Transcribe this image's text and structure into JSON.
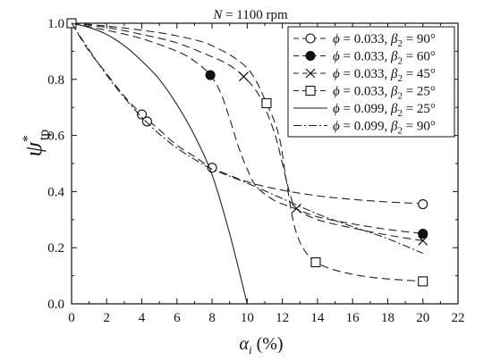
{
  "chart_data": {
    "type": "line",
    "title": "N = 1100 rpm",
    "title_parts": [
      "N",
      " = 1100 rpm"
    ],
    "xlabel": "αi (%)",
    "xlabel_parts": [
      "α",
      "i",
      " (%)"
    ],
    "ylabel": "ψ*tp",
    "ylabel_parts": [
      "ψ",
      "*",
      "tp"
    ],
    "xlim": [
      0,
      22
    ],
    "ylim": [
      0,
      1.0
    ],
    "xticks": [
      0,
      2,
      4,
      6,
      8,
      10,
      12,
      14,
      16,
      18,
      20,
      22
    ],
    "yticks": [
      0.0,
      0.2,
      0.4,
      0.6,
      0.8,
      1.0
    ],
    "xtick_labels": [
      "0",
      "2",
      "4",
      "6",
      "8",
      "10",
      "12",
      "14",
      "16",
      "18",
      "20",
      "22"
    ],
    "ytick_labels": [
      "0.0",
      "0.2",
      "0.4",
      "0.6",
      "0.8",
      "1.0"
    ],
    "grid": false,
    "legend_position": "top-right",
    "series": [
      {
        "name": "ϕ = 0.033, β2 = 90°",
        "label_parts": [
          "ϕ",
          " = 0.033, ",
          "β",
          "2",
          " = 90°"
        ],
        "marker": "open-circle",
        "dash": "9,5",
        "points": [
          [
            0,
            1.0
          ],
          [
            4,
            0.675
          ],
          [
            4.3,
            0.65
          ],
          [
            8,
            0.485
          ],
          [
            20,
            0.355
          ]
        ],
        "curve": [
          [
            0,
            1.0
          ],
          [
            1,
            0.9
          ],
          [
            2,
            0.82
          ],
          [
            3,
            0.74
          ],
          [
            4,
            0.675
          ],
          [
            5,
            0.62
          ],
          [
            6,
            0.565
          ],
          [
            7,
            0.525
          ],
          [
            8,
            0.485
          ],
          [
            10,
            0.435
          ],
          [
            12,
            0.405
          ],
          [
            14,
            0.385
          ],
          [
            16,
            0.372
          ],
          [
            18,
            0.363
          ],
          [
            20,
            0.357
          ]
        ]
      },
      {
        "name": "ϕ = 0.033, β2 = 60°",
        "label_parts": [
          "ϕ",
          " = 0.033, ",
          "β",
          "2",
          " = 60°"
        ],
        "marker": "filled-circle",
        "dash": "9,5",
        "points": [
          [
            0,
            1.0
          ],
          [
            7.9,
            0.815
          ],
          [
            20,
            0.25
          ]
        ],
        "curve": [
          [
            0,
            1.0
          ],
          [
            2,
            0.975
          ],
          [
            4,
            0.945
          ],
          [
            6,
            0.9
          ],
          [
            7,
            0.865
          ],
          [
            7.9,
            0.815
          ],
          [
            8.5,
            0.75
          ],
          [
            9,
            0.66
          ],
          [
            9.5,
            0.56
          ],
          [
            10,
            0.48
          ],
          [
            10.5,
            0.42
          ],
          [
            11.5,
            0.37
          ],
          [
            12.7,
            0.34
          ],
          [
            14,
            0.31
          ],
          [
            16,
            0.285
          ],
          [
            18,
            0.265
          ],
          [
            20,
            0.25
          ]
        ]
      },
      {
        "name": "ϕ = 0.033, β2 = 45°",
        "label_parts": [
          "ϕ",
          " = 0.033, ",
          "β",
          "2",
          " = 45°"
        ],
        "marker": "cross",
        "dash": "9,5",
        "points": [
          [
            0,
            1.0
          ],
          [
            9.8,
            0.81
          ],
          [
            12.8,
            0.34
          ],
          [
            20,
            0.225
          ]
        ],
        "curve": [
          [
            0,
            1.0
          ],
          [
            2,
            0.985
          ],
          [
            4,
            0.96
          ],
          [
            6,
            0.93
          ],
          [
            8,
            0.88
          ],
          [
            9,
            0.85
          ],
          [
            9.8,
            0.81
          ],
          [
            10.5,
            0.76
          ],
          [
            11,
            0.7
          ],
          [
            11.6,
            0.6
          ],
          [
            12,
            0.5
          ],
          [
            12.4,
            0.4
          ],
          [
            12.8,
            0.34
          ],
          [
            14,
            0.3
          ],
          [
            16,
            0.27
          ],
          [
            18,
            0.245
          ],
          [
            20,
            0.225
          ]
        ]
      },
      {
        "name": "ϕ = 0.033, β2 = 25°",
        "label_parts": [
          "ϕ",
          " = 0.033, ",
          "β",
          "2",
          " = 25°"
        ],
        "marker": "open-square",
        "dash": "9,5",
        "points": [
          [
            0,
            1.0
          ],
          [
            11.1,
            0.715
          ],
          [
            13.9,
            0.148
          ],
          [
            20,
            0.08
          ]
        ],
        "curve": [
          [
            0,
            1.0
          ],
          [
            2,
            0.99
          ],
          [
            4,
            0.975
          ],
          [
            6,
            0.955
          ],
          [
            8,
            0.92
          ],
          [
            10,
            0.84
          ],
          [
            11.1,
            0.715
          ],
          [
            11.8,
            0.6
          ],
          [
            12.2,
            0.45
          ],
          [
            12.6,
            0.3
          ],
          [
            13,
            0.22
          ],
          [
            13.5,
            0.17
          ],
          [
            13.9,
            0.148
          ],
          [
            15,
            0.12
          ],
          [
            17,
            0.095
          ],
          [
            20,
            0.08
          ]
        ]
      },
      {
        "name": "ϕ = 0.099, β2 = 25°",
        "label_parts": [
          "ϕ",
          " = 0.099, ",
          "β",
          "2",
          " = 25°"
        ],
        "marker": "none",
        "dash": "",
        "points": [],
        "curve": [
          [
            0,
            1.0
          ],
          [
            1,
            0.985
          ],
          [
            2,
            0.96
          ],
          [
            3,
            0.92
          ],
          [
            4,
            0.865
          ],
          [
            5,
            0.8
          ],
          [
            6,
            0.71
          ],
          [
            7,
            0.6
          ],
          [
            8,
            0.46
          ],
          [
            9,
            0.25
          ],
          [
            10,
            0.0
          ]
        ]
      },
      {
        "name": "ϕ = 0.099, β2 = 90°",
        "label_parts": [
          "ϕ",
          " = 0.099, ",
          "β",
          "2",
          " = 90°"
        ],
        "marker": "none",
        "dash": "9,3,2,3",
        "points": [],
        "curve": [
          [
            0,
            1.0
          ],
          [
            1,
            0.905
          ],
          [
            2,
            0.815
          ],
          [
            3,
            0.735
          ],
          [
            4,
            0.665
          ],
          [
            5,
            0.605
          ],
          [
            6,
            0.555
          ],
          [
            7,
            0.515
          ],
          [
            8,
            0.48
          ],
          [
            10,
            0.43
          ],
          [
            12,
            0.375
          ],
          [
            14,
            0.32
          ],
          [
            16,
            0.275
          ],
          [
            18,
            0.232
          ],
          [
            20,
            0.18
          ]
        ]
      }
    ]
  }
}
